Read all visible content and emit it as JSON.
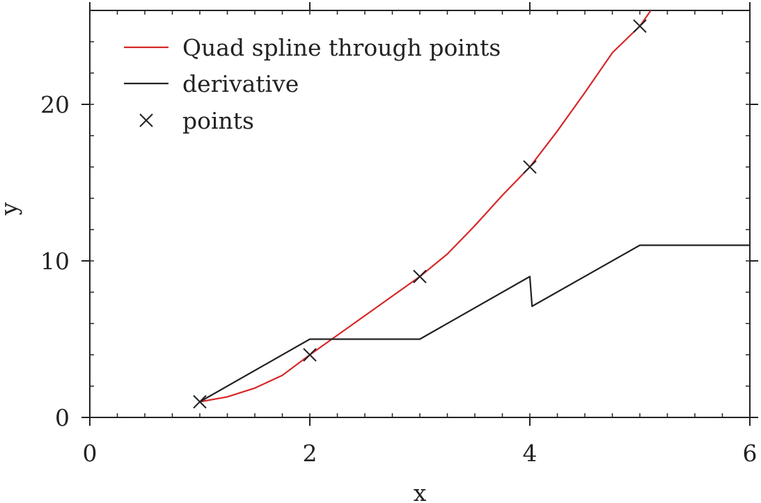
{
  "chart_data": {
    "type": "line",
    "xlabel": "x",
    "ylabel": "y",
    "xlim": [
      0,
      6
    ],
    "ylim": [
      0,
      26
    ],
    "xticks": [
      0,
      2,
      4,
      6
    ],
    "xtick_labels": [
      "0",
      "2",
      "4",
      "6"
    ],
    "yticks": [
      0,
      10,
      20
    ],
    "ytick_labels": [
      "0",
      "10",
      "20"
    ],
    "x_minor_step": 0.25,
    "y_minor_step": 2,
    "grid": false,
    "legend_position": "top-left",
    "series": [
      {
        "name": "Quad spline through points",
        "kind": "line",
        "color": "#d62728",
        "x": [
          1.0,
          1.25,
          1.5,
          1.75,
          2.0,
          2.25,
          2.5,
          2.75,
          3.0,
          3.25,
          3.5,
          3.75,
          4.0,
          4.25,
          4.5,
          4.75,
          5.0,
          5.1
        ],
        "y": [
          1.0,
          1.3125,
          1.875,
          2.6875,
          4.0,
          5.25,
          6.5,
          7.75,
          9.0,
          10.4375,
          12.25,
          14.1875,
          16.0,
          18.2969,
          20.75,
          23.2969,
          25.0,
          26.0
        ]
      },
      {
        "name": "derivative",
        "kind": "line",
        "color": "#222222",
        "x": [
          1.0,
          2.0,
          3.0,
          4.0,
          4.02,
          5.0,
          6.0
        ],
        "y": [
          1.0,
          5.0,
          5.0,
          9.0,
          7.1,
          11.0,
          11.0
        ]
      },
      {
        "name": "points",
        "kind": "scatter",
        "marker": "x",
        "color": "#222222",
        "x": [
          1,
          2,
          3,
          4,
          5
        ],
        "y": [
          1,
          4,
          9,
          16,
          25
        ]
      }
    ]
  }
}
